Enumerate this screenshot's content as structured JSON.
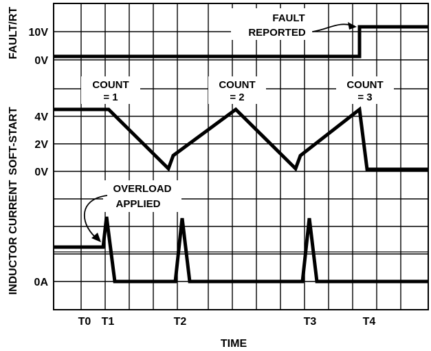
{
  "figure": {
    "x_axis_label": "TIME",
    "time_markers": [
      "T0",
      "T1",
      "T2",
      "T3",
      "T4"
    ],
    "panels": [
      {
        "id": "fault",
        "y_label": "FAULT/RT",
        "y_ticks": [
          "10V",
          "0V"
        ],
        "annotation": [
          "FAULT",
          "REPORTED"
        ]
      },
      {
        "id": "softstart",
        "y_label": "SOFT-START",
        "y_ticks": [
          "4V",
          "2V",
          "0V"
        ],
        "counts": [
          {
            "line1": "COUNT",
            "line2": "= 1"
          },
          {
            "line1": "COUNT",
            "line2": "= 2"
          },
          {
            "line1": "COUNT",
            "line2": "= 3"
          }
        ]
      },
      {
        "id": "inductor",
        "y_label": "INDUCTOR CURRENT",
        "y_ticks": [
          "0A"
        ],
        "annotation": [
          "OVERLOAD",
          "APPLIED"
        ]
      }
    ]
  },
  "colors": {
    "ink": "#000000",
    "background": "#ffffff"
  }
}
